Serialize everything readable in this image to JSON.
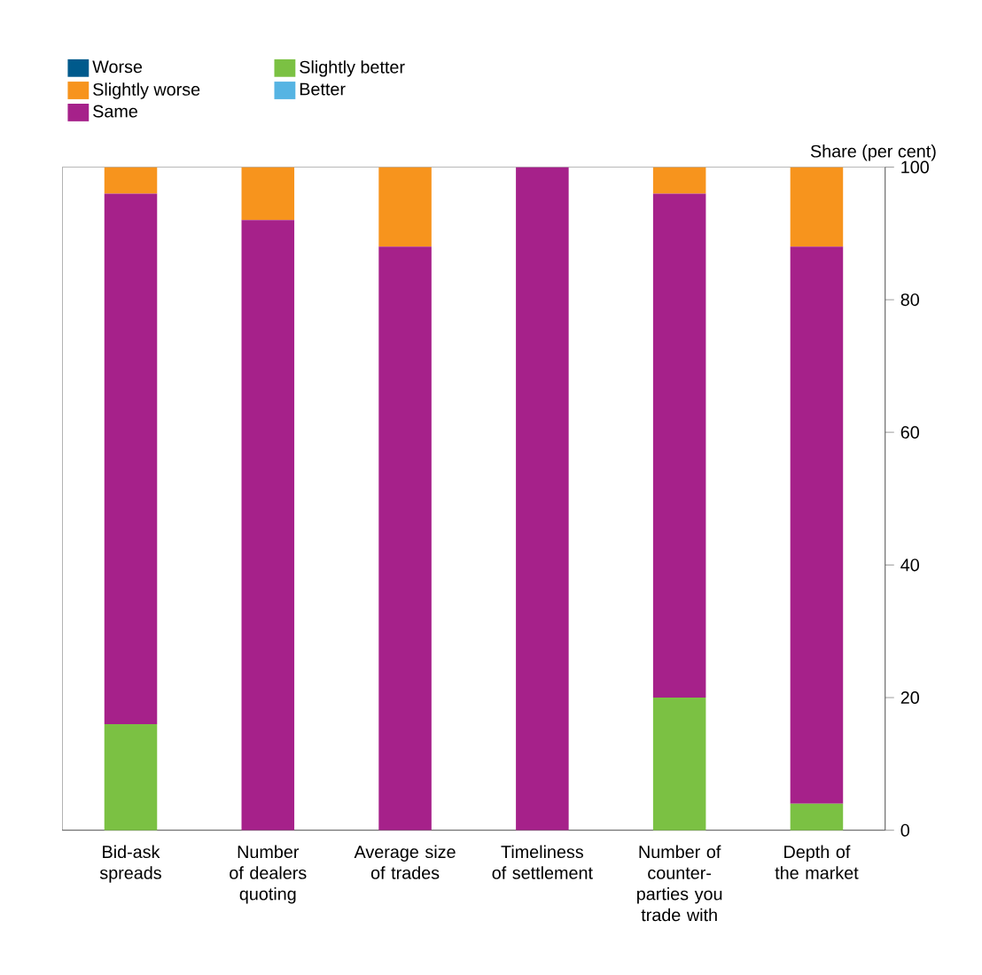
{
  "chart_data": {
    "type": "bar",
    "stacked": true,
    "ylabel": "Share (per cent)",
    "categories": [
      "Bid-ask spreads",
      "Number of dealers quoting",
      "Average size of trades",
      "Timeliness of settlement",
      "Number of counter-parties you trade with",
      "Depth of the market"
    ],
    "series": [
      {
        "name": "Better",
        "color": "#56b4e3",
        "values": [
          0,
          0,
          0,
          0,
          0,
          0
        ]
      },
      {
        "name": "Slightly better",
        "color": "#7bc143",
        "values": [
          16,
          0,
          0,
          0,
          20,
          4
        ]
      },
      {
        "name": "Same",
        "color": "#a6218a",
        "values": [
          80,
          92,
          88,
          100,
          76,
          84
        ]
      },
      {
        "name": "Slightly worse",
        "color": "#f7941d",
        "values": [
          4,
          8,
          12,
          0,
          4,
          12
        ]
      },
      {
        "name": "Worse",
        "color": "#005a8c",
        "values": [
          0,
          0,
          0,
          0,
          0,
          0
        ]
      }
    ],
    "ylim": [
      0,
      100
    ],
    "yticks": [
      0,
      20,
      40,
      60,
      80,
      100
    ],
    "grid": false,
    "legend": "top left"
  }
}
